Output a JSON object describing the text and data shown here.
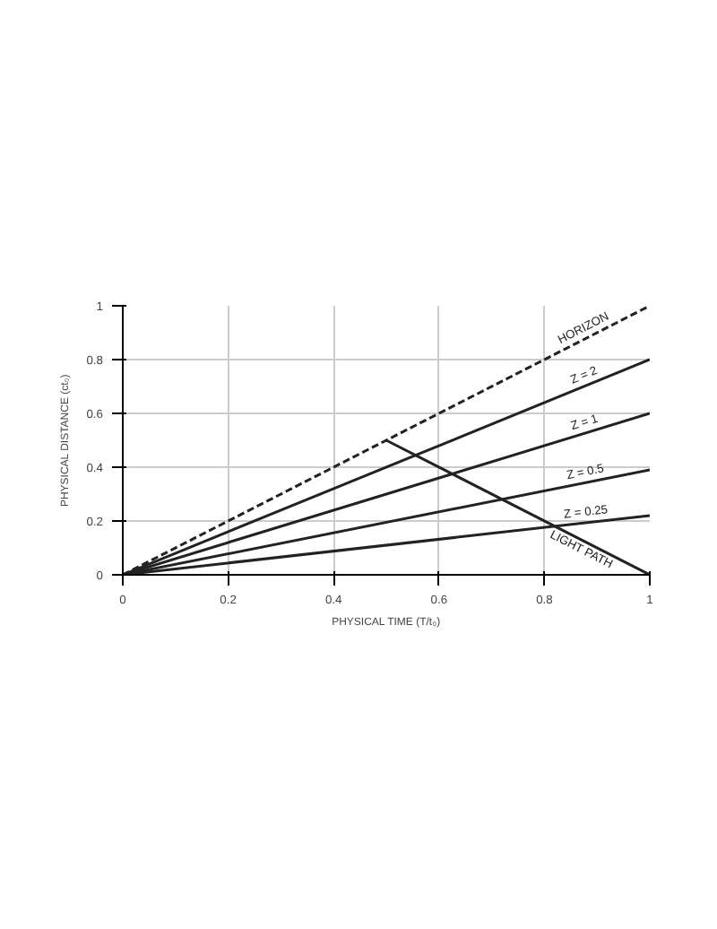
{
  "chart_data": {
    "type": "line",
    "xlabel": "PHYSICAL TIME (T/t₀)",
    "ylabel": "PHYSICAL DISTANCE (ct₀)",
    "x": [
      0,
      1
    ],
    "xlim": [
      0,
      1
    ],
    "ylim": [
      0,
      1
    ],
    "xticks": [
      0,
      0.2,
      0.4,
      0.6,
      0.8,
      1
    ],
    "yticks": [
      0,
      0.2,
      0.4,
      0.6,
      0.8,
      1
    ],
    "grid": true,
    "series": [
      {
        "name": "HORIZON",
        "color": "#222222",
        "values": [
          0,
          1
        ],
        "line_style": "dashed"
      },
      {
        "name": "Z = 2",
        "color": "#222222",
        "values": [
          0,
          0.8
        ],
        "line_style": "solid"
      },
      {
        "name": "Z = 1",
        "color": "#222222",
        "values": [
          0,
          0.6
        ],
        "line_style": "solid"
      },
      {
        "name": "Z = 0.5",
        "color": "#222222",
        "values": [
          0,
          0.39
        ],
        "line_style": "solid"
      },
      {
        "name": "Z = 0.25",
        "color": "#222222",
        "values": [
          0,
          0.22
        ],
        "line_style": "solid"
      },
      {
        "name": "LIGHT PATH",
        "color": "#222222",
        "x": [
          0.5,
          1
        ],
        "values": [
          0.5,
          0
        ],
        "line_style": "solid"
      }
    ]
  }
}
